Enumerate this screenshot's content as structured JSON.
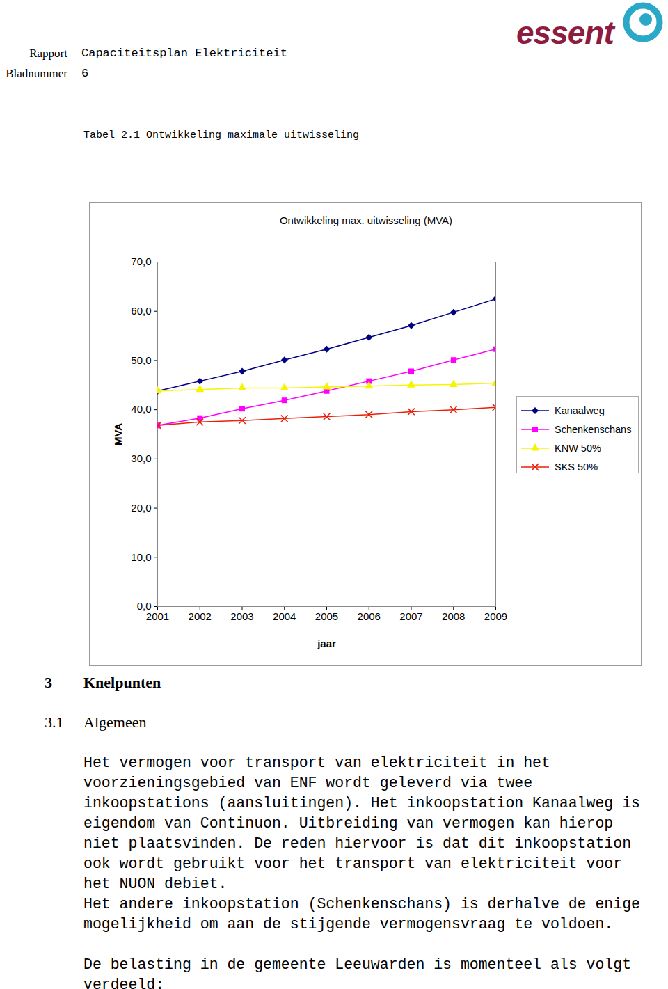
{
  "header": {
    "report_label": "Rapport",
    "report_title": "Capaciteitsplan Elektriciteit",
    "page_label": "Bladnummer",
    "page_number": "6",
    "logo": "essent"
  },
  "caption": "Tabel 2.1 Ontwikkeling maximale uitwisseling",
  "chart_data": {
    "type": "line",
    "title": "Ontwikkeling max. uitwisseling (MVA)",
    "x_label": "jaar",
    "y_label": "MVA",
    "x": [
      2001,
      2002,
      2003,
      2004,
      2005,
      2006,
      2007,
      2008,
      2009
    ],
    "xlim": [
      2001,
      2009
    ],
    "xticks": [
      2001,
      2002,
      2003,
      2004,
      2005,
      2006,
      2007,
      2008,
      2009
    ],
    "ylim": [
      0,
      70
    ],
    "yticks": [
      {
        "value": 0,
        "label": "0,0"
      },
      {
        "value": 10,
        "label": "10,0"
      },
      {
        "value": 20,
        "label": "20,0"
      },
      {
        "value": 30,
        "label": "30,0"
      },
      {
        "value": 40,
        "label": "40,0"
      },
      {
        "value": 50,
        "label": "50,0"
      },
      {
        "value": 60,
        "label": "60,0"
      },
      {
        "value": 70,
        "label": "70,0"
      }
    ],
    "grid": false,
    "legend": "right",
    "series": [
      {
        "name": "Kanaalweg",
        "color": "#000080",
        "marker": "diamond",
        "values": [
          43.8,
          45.8,
          47.8,
          50.1,
          52.3,
          54.7,
          57.1,
          59.8,
          62.5
        ]
      },
      {
        "name": "Schenkenschans",
        "color": "#ff00ff",
        "marker": "square",
        "values": [
          36.8,
          38.3,
          40.2,
          41.9,
          43.8,
          45.8,
          47.8,
          50.1,
          52.3
        ]
      },
      {
        "name": "KNW 50%",
        "color": "#f5f500",
        "marker": "triangle",
        "values": [
          43.8,
          44.1,
          44.4,
          44.4,
          44.6,
          44.8,
          45.0,
          45.1,
          45.4
        ]
      },
      {
        "name": "SKS 50%",
        "color": "#e8200a",
        "marker": "x",
        "values": [
          36.8,
          37.5,
          37.8,
          38.2,
          38.6,
          39.0,
          39.6,
          40.0,
          40.5
        ]
      }
    ]
  },
  "sections": [
    {
      "number": "3",
      "title": "Knelpunten",
      "level": 1
    },
    {
      "number": "3.1",
      "title": "Algemeen",
      "level": 2,
      "paragraphs": [
        [
          "Het vermogen voor transport van elektriciteit in het",
          "voorzieningsgebied van ENF wordt geleverd via twee",
          "inkoopstations (aansluitingen). Het inkoopstation Kanaalweg is",
          "eigendom van Continuon. Uitbreiding van vermogen kan hierop",
          "niet plaatsvinden. De reden hiervoor is dat dit inkoopstation",
          "ook wordt gebruikt voor het transport van elektriciteit voor",
          "het NUON debiet.",
          "Het andere inkoopstation (Schenkenschans) is derhalve de enige",
          "mogelijkheid om aan de stijgende vermogensvraag te voldoen."
        ],
        [
          "De belasting in de gemeente Leeuwarden is momenteel als volgt",
          "verdeeld:"
        ]
      ]
    }
  ]
}
